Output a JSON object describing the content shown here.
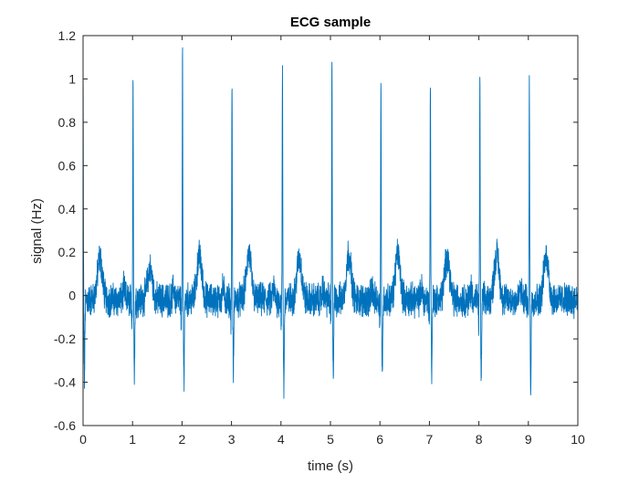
{
  "colors": {
    "background": "#ffffff",
    "axes": "#262626",
    "series": "#0072bd"
  },
  "chart_data": {
    "type": "line",
    "title": "ECG sample",
    "xlabel": "time (s)",
    "ylabel": "signal (Hz)",
    "xlim": [
      0,
      10
    ],
    "ylim": [
      -0.6,
      1.2
    ],
    "xticks": [
      0,
      1,
      2,
      3,
      4,
      5,
      6,
      7,
      8,
      9,
      10
    ],
    "yticks": [
      -0.6,
      -0.4,
      -0.2,
      0,
      0.2,
      0.4,
      0.6,
      0.8,
      1,
      1.2
    ],
    "xtick_labels": [
      "0",
      "1",
      "2",
      "3",
      "4",
      "5",
      "6",
      "7",
      "8",
      "9",
      "10"
    ],
    "ytick_labels": [
      "-0.6",
      "-0.4",
      "-0.2",
      "0",
      "0.2",
      "0.4",
      "0.6",
      "0.8",
      "1",
      "1.2"
    ],
    "grid": false,
    "box": true,
    "legend": "none",
    "series": [
      {
        "sample_rate_hz": 360,
        "beats": [
          {
            "r_time": 0.0,
            "r_peak": 1.05,
            "s_min": -0.38,
            "t_peak": 0.21
          },
          {
            "r_time": 1.01,
            "r_peak": 1.05,
            "s_min": -0.35,
            "t_peak": 0.16
          },
          {
            "r_time": 2.01,
            "r_peak": 1.11,
            "s_min": -0.39,
            "t_peak": 0.22
          },
          {
            "r_time": 3.01,
            "r_peak": 1.05,
            "s_min": -0.37,
            "t_peak": 0.23
          },
          {
            "r_time": 4.03,
            "r_peak": 1.09,
            "s_min": -0.43,
            "t_peak": 0.21
          },
          {
            "r_time": 5.03,
            "r_peak": 1.09,
            "s_min": -0.37,
            "t_peak": 0.23
          },
          {
            "r_time": 6.02,
            "r_peak": 1.02,
            "s_min": -0.39,
            "t_peak": 0.23
          },
          {
            "r_time": 7.02,
            "r_peak": 1.05,
            "s_min": -0.37,
            "t_peak": 0.22
          },
          {
            "r_time": 8.02,
            "r_peak": 1.05,
            "s_min": -0.39,
            "t_peak": 0.23
          },
          {
            "r_time": 9.02,
            "r_peak": 1.02,
            "s_min": -0.42,
            "t_peak": 0.22
          }
        ]
      }
    ]
  }
}
